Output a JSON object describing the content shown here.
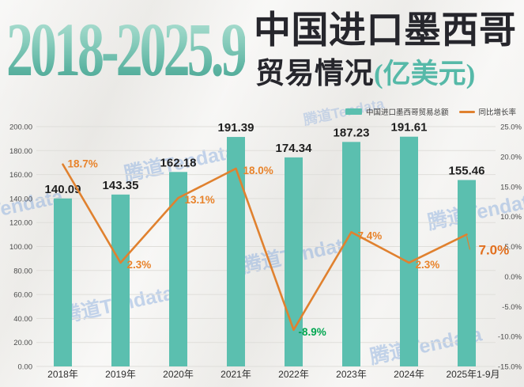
{
  "title": {
    "years": "2018-2025.9",
    "line1": "中国进口墨西哥",
    "line2": "贸易情况",
    "unit": "(亿美元)"
  },
  "watermark": "腾道Tendata",
  "legend": [
    {
      "label": "中国进口墨西哥贸易总额"
    },
    {
      "label": "同比增长率"
    }
  ],
  "colors": {
    "bar": "#5BBFAF",
    "line": "#E0812F",
    "bar_label": "#1F1F1F",
    "axis_label": "#4A4A4A",
    "x_label": "#2E2E2E",
    "grid": "#DFDEDA",
    "pct_label": "#E8832B",
    "pct_negative": "#00A650",
    "pct_last": "#E2701F",
    "title_teal": "#56B9A8",
    "title_dark": "#26262C",
    "watermark": "#7AA2DC"
  },
  "chart_data": {
    "type": "bar",
    "subtype": "bar+line combo",
    "title": "2018-2025.9 中国进口墨西哥贸易情况(亿美元)",
    "categories": [
      "2018年",
      "2019年",
      "2020年",
      "2021年",
      "2022年",
      "2023年",
      "2024年",
      "2025年1-9月"
    ],
    "series": [
      {
        "name": "中国进口墨西哥贸易总额",
        "type": "bar",
        "axis": "left",
        "values": [
          140.09,
          143.35,
          162.18,
          191.39,
          174.34,
          187.23,
          191.61,
          155.46
        ],
        "value_labels": [
          "140.09",
          "143.35",
          "162.18",
          "191.39",
          "174.34",
          "187.23",
          "191.61",
          "155.46"
        ]
      },
      {
        "name": "同比增长率",
        "type": "line",
        "axis": "right",
        "values": [
          18.7,
          2.3,
          13.1,
          18.0,
          -8.9,
          7.4,
          2.3,
          7.0
        ],
        "value_labels": [
          "18.7%",
          "2.3%",
          "13.1%",
          "18.0%",
          "-8.9%",
          "7.4%",
          "2.3%",
          "7.0%"
        ]
      }
    ],
    "left_axis": {
      "min": 0,
      "max": 200,
      "step": 20,
      "tick_labels": [
        "0.00",
        "20.00",
        "40.00",
        "60.00",
        "80.00",
        "100.00",
        "120.00",
        "140.00",
        "160.00",
        "180.00",
        "200.00"
      ]
    },
    "right_axis": {
      "min": -15,
      "max": 25,
      "step": 5,
      "tick_labels": [
        "-15.0%",
        "-10.0%",
        "-5.0%",
        "0.0%",
        "5.0%",
        "10.0%",
        "15.0%",
        "20.0%",
        "25.0%"
      ]
    },
    "grid": "horizontal gridlines at left-axis intervals",
    "legend_position": "top-right"
  }
}
